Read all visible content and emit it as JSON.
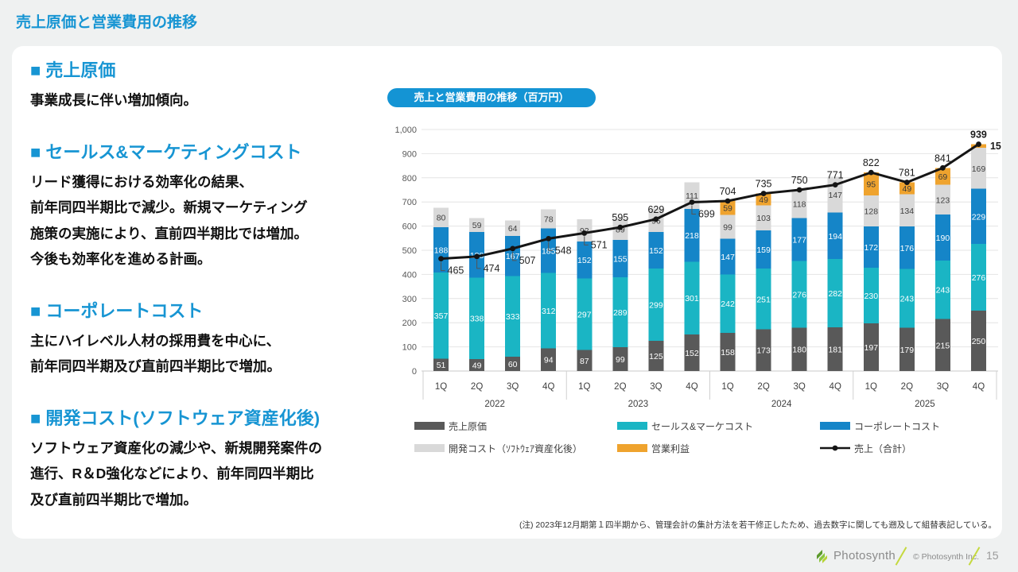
{
  "page": {
    "title": "売上原価と営業費用の推移",
    "footnote": "(注) 2023年12月期第１四半期から、管理会計の集計方法を若干修正したため、過去数字に関しても遡及して組替表記している。",
    "footer": {
      "brand": "Photosynth",
      "copyright": "© Photosynth Inc.",
      "page_number": "15"
    }
  },
  "sections": [
    {
      "heading": "■ 売上原価",
      "body": [
        "事業成長に伴い増加傾向。"
      ]
    },
    {
      "heading": "■ セールス&マーケティングコスト",
      "body": [
        "リード獲得における効率化の結果、",
        "前年同四半期比で減少。新規マーケティング",
        "施策の実施により、直前四半期比では増加。",
        "今後も効率化を進める計画。"
      ]
    },
    {
      "heading": "■ コーポレートコスト",
      "body": [
        "主にハイレベル人材の採用費を中心に、",
        "前年同四半期及び直前四半期比で増加。"
      ]
    },
    {
      "heading": "■ 開発コスト(ソフトウェア資産化後)",
      "body": [
        "ソフトウェア資産化の減少や、新規開発案件の",
        "進行、R＆D強化などにより、前年同四半期比",
        "及び直前四半期比で増加。"
      ]
    }
  ],
  "chart_data": {
    "type": "bar",
    "subtype": "stacked-bar-with-line",
    "title": "売上と営業費用の推移（百万円）",
    "unit": "百万円",
    "years": [
      "2022",
      "2023",
      "2024",
      "2025"
    ],
    "categories": [
      "1Q",
      "2Q",
      "3Q",
      "4Q",
      "1Q",
      "2Q",
      "3Q",
      "4Q",
      "1Q",
      "2Q",
      "3Q",
      "4Q",
      "1Q",
      "2Q",
      "3Q",
      "4Q"
    ],
    "ylim": [
      0,
      1000
    ],
    "ytick_labels": [
      "0",
      "100",
      "200",
      "300",
      "400",
      "500",
      "600",
      "700",
      "800",
      "900",
      "1,000"
    ],
    "grid": true,
    "series": [
      {
        "name": "売上原価",
        "color": "#595959",
        "label_color": "#ffffff",
        "values": [
          51,
          49,
          60,
          94,
          87,
          99,
          125,
          152,
          158,
          173,
          180,
          181,
          197,
          179,
          215,
          250
        ]
      },
      {
        "name": "セールス&マーケコスト",
        "color": "#1ab5c4",
        "label_color": "#ffffff",
        "values": [
          357,
          338,
          333,
          312,
          297,
          289,
          299,
          301,
          242,
          251,
          276,
          282,
          230,
          243,
          243,
          276
        ]
      },
      {
        "name": "コーポレートコスト",
        "color": "#1585c8",
        "label_color": "#ffffff",
        "values": [
          188,
          188,
          167,
          185,
          152,
          155,
          152,
          218,
          147,
          159,
          177,
          194,
          172,
          176,
          190,
          229
        ]
      },
      {
        "name": "開発コスト（ｿﾌﾄｳｪｱ資産化後）",
        "color": "#d9d9d9",
        "label_color": "#404040",
        "values": [
          80,
          59,
          64,
          78,
          92,
          89,
          96,
          111,
          99,
          103,
          118,
          147,
          128,
          134,
          123,
          169
        ]
      },
      {
        "name": "営業利益",
        "color": "#efa32e",
        "label_color": "#3a3a3a",
        "values": [
          null,
          null,
          null,
          null,
          null,
          null,
          null,
          null,
          59,
          49,
          null,
          null,
          95,
          49,
          69,
          15
        ]
      }
    ],
    "line": {
      "name": "売上（合計）",
      "color": "#151515",
      "values": [
        465,
        474,
        507,
        548,
        571,
        595,
        629,
        699,
        704,
        735,
        750,
        771,
        822,
        781,
        841,
        939
      ],
      "label_pos": [
        "below",
        "below",
        "below",
        "below",
        "below",
        "above",
        "above",
        "below",
        "above",
        "above",
        "above",
        "above",
        "above",
        "above",
        "above",
        "above"
      ]
    },
    "legend": [
      {
        "label": "売上原価",
        "color": "#595959",
        "marker": "box"
      },
      {
        "label": "セールス&マーケコスト",
        "color": "#1ab5c4",
        "marker": "box"
      },
      {
        "label": "コーポレートコスト",
        "color": "#1585c8",
        "marker": "box"
      },
      {
        "label": "開発コスト（ｿﾌﾄｳｪｱ資産化後）",
        "color": "#d9d9d9",
        "marker": "box"
      },
      {
        "label": "営業利益",
        "color": "#efa32e",
        "marker": "box"
      },
      {
        "label": "売上（合計）",
        "color": "#151515",
        "marker": "line"
      }
    ]
  }
}
